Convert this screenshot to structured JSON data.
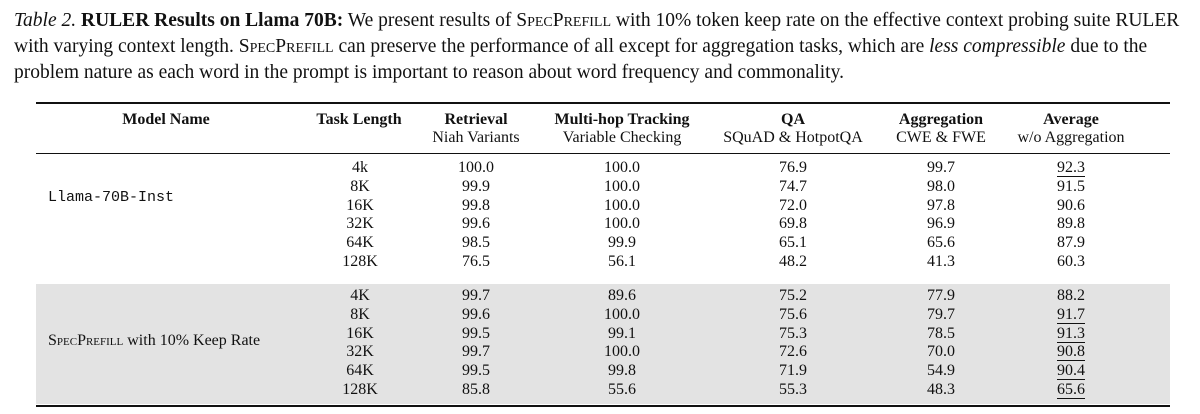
{
  "caption": {
    "label": "Table 2.",
    "title": "RULER Results on Llama 70B:",
    "part1": " We present results of ",
    "sc1": "SpecPrefill",
    "part2": " with 10% token keep rate on the effective context probing suite RULER with varying context length. ",
    "sc2": "SpecPrefill",
    "part3": " can preserve the performance of all except for aggregation tasks, which are ",
    "italic": "less compressible",
    "part4": " due to the problem nature as each word in the prompt is important to reason about word frequency and commonality."
  },
  "headers": {
    "model": "Model Name",
    "length": "Task Length",
    "retrieval": {
      "title": "Retrieval",
      "sub": "Niah Variants"
    },
    "multihop": {
      "title": "Multi-hop Tracking",
      "sub": "Variable Checking"
    },
    "qa": {
      "title": "QA",
      "sub": "SQuAD & HotpotQA"
    },
    "aggregation": {
      "title": "Aggregation",
      "sub": "CWE & FWE"
    },
    "average": {
      "title": "Average",
      "sub": "w/o Aggregation"
    }
  },
  "groups": [
    {
      "model": "Llama-70B-Inst",
      "lengths": [
        "4k",
        "8K",
        "16K",
        "32K",
        "64K",
        "128K"
      ],
      "retrieval": [
        "100.0",
        "99.9",
        "99.8",
        "99.6",
        "98.5",
        "76.5"
      ],
      "multihop": [
        "100.0",
        "100.0",
        "100.0",
        "100.0",
        "99.9",
        "56.1"
      ],
      "qa": [
        "76.9",
        "74.7",
        "72.0",
        "69.8",
        "65.1",
        "48.2"
      ],
      "aggregation": [
        "99.7",
        "98.0",
        "97.8",
        "96.9",
        "65.6",
        "41.3"
      ],
      "average": [
        "92.3",
        "91.5",
        "90.6",
        "89.8",
        "87.9",
        "60.3"
      ]
    },
    {
      "model_sc": "SpecPrefill",
      "model_rest": " with 10% Keep Rate",
      "lengths": [
        "4K",
        "8K",
        "16K",
        "32K",
        "64K",
        "128K"
      ],
      "retrieval": [
        "99.7",
        "99.6",
        "99.5",
        "99.7",
        "99.5",
        "85.8"
      ],
      "multihop": [
        "89.6",
        "100.0",
        "99.1",
        "100.0",
        "99.8",
        "55.6"
      ],
      "qa": [
        "75.2",
        "75.6",
        "75.3",
        "72.6",
        "71.9",
        "55.3"
      ],
      "aggregation": [
        "77.9",
        "79.7",
        "78.5",
        "70.0",
        "54.9",
        "48.3"
      ],
      "average": [
        "88.2",
        "91.7",
        "91.3",
        "90.8",
        "90.4",
        "65.6"
      ]
    }
  ]
}
